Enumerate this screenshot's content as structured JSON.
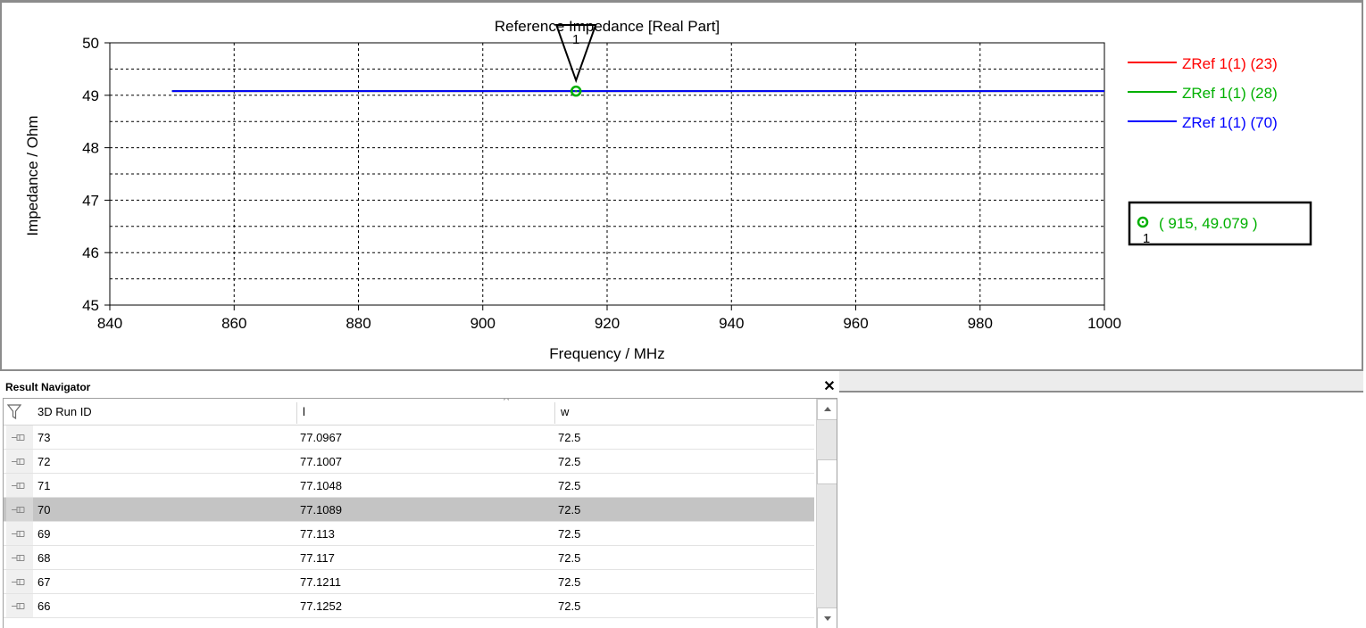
{
  "chart_data": {
    "type": "line",
    "title": "Reference Impedance [Real Part]",
    "xlabel": "Frequency / MHz",
    "ylabel": "Impedance / Ohm",
    "xlim": [
      840,
      1000
    ],
    "ylim": [
      45,
      50
    ],
    "xticks": [
      840,
      860,
      880,
      900,
      920,
      940,
      960,
      980,
      1000
    ],
    "yticks": [
      45,
      46,
      47,
      48,
      49,
      50
    ],
    "grid": true,
    "legend_position": "right",
    "series": [
      {
        "name": "ZRef 1(1) (23)",
        "color": "#ff0000",
        "x": [
          850,
          1000
        ],
        "y": [
          49.079,
          49.079
        ]
      },
      {
        "name": "ZRef 1(1) (28)",
        "color": "#00b000",
        "x": [
          850,
          1000
        ],
        "y": [
          49.079,
          49.079
        ]
      },
      {
        "name": "ZRef 1(1) (70)",
        "color": "#0000ff",
        "x": [
          850,
          1000
        ],
        "y": [
          49.079,
          49.079
        ]
      }
    ],
    "marker": {
      "id": "1",
      "x": 915,
      "y": 49.079,
      "label": "( 915, 49.079 )",
      "color": "#00b000"
    }
  },
  "navigator": {
    "title": "Result Navigator",
    "close_glyph": "✕",
    "columns": [
      "3D Run ID",
      "l",
      "w"
    ],
    "rows": [
      {
        "id": "73",
        "l": "77.0967",
        "w": "72.5",
        "selected": false
      },
      {
        "id": "72",
        "l": "77.1007",
        "w": "72.5",
        "selected": false
      },
      {
        "id": "71",
        "l": "77.1048",
        "w": "72.5",
        "selected": false
      },
      {
        "id": "70",
        "l": "77.1089",
        "w": "72.5",
        "selected": true
      },
      {
        "id": "69",
        "l": "77.113",
        "w": "72.5",
        "selected": false
      },
      {
        "id": "68",
        "l": "77.117",
        "w": "72.5",
        "selected": false
      },
      {
        "id": "67",
        "l": "77.1211",
        "w": "72.5",
        "selected": false
      },
      {
        "id": "66",
        "l": "77.1252",
        "w": "72.5",
        "selected": false
      }
    ],
    "icons": {
      "filter": "filter-icon",
      "pin": "pin-icon",
      "sort": "sort-caret-icon"
    }
  }
}
